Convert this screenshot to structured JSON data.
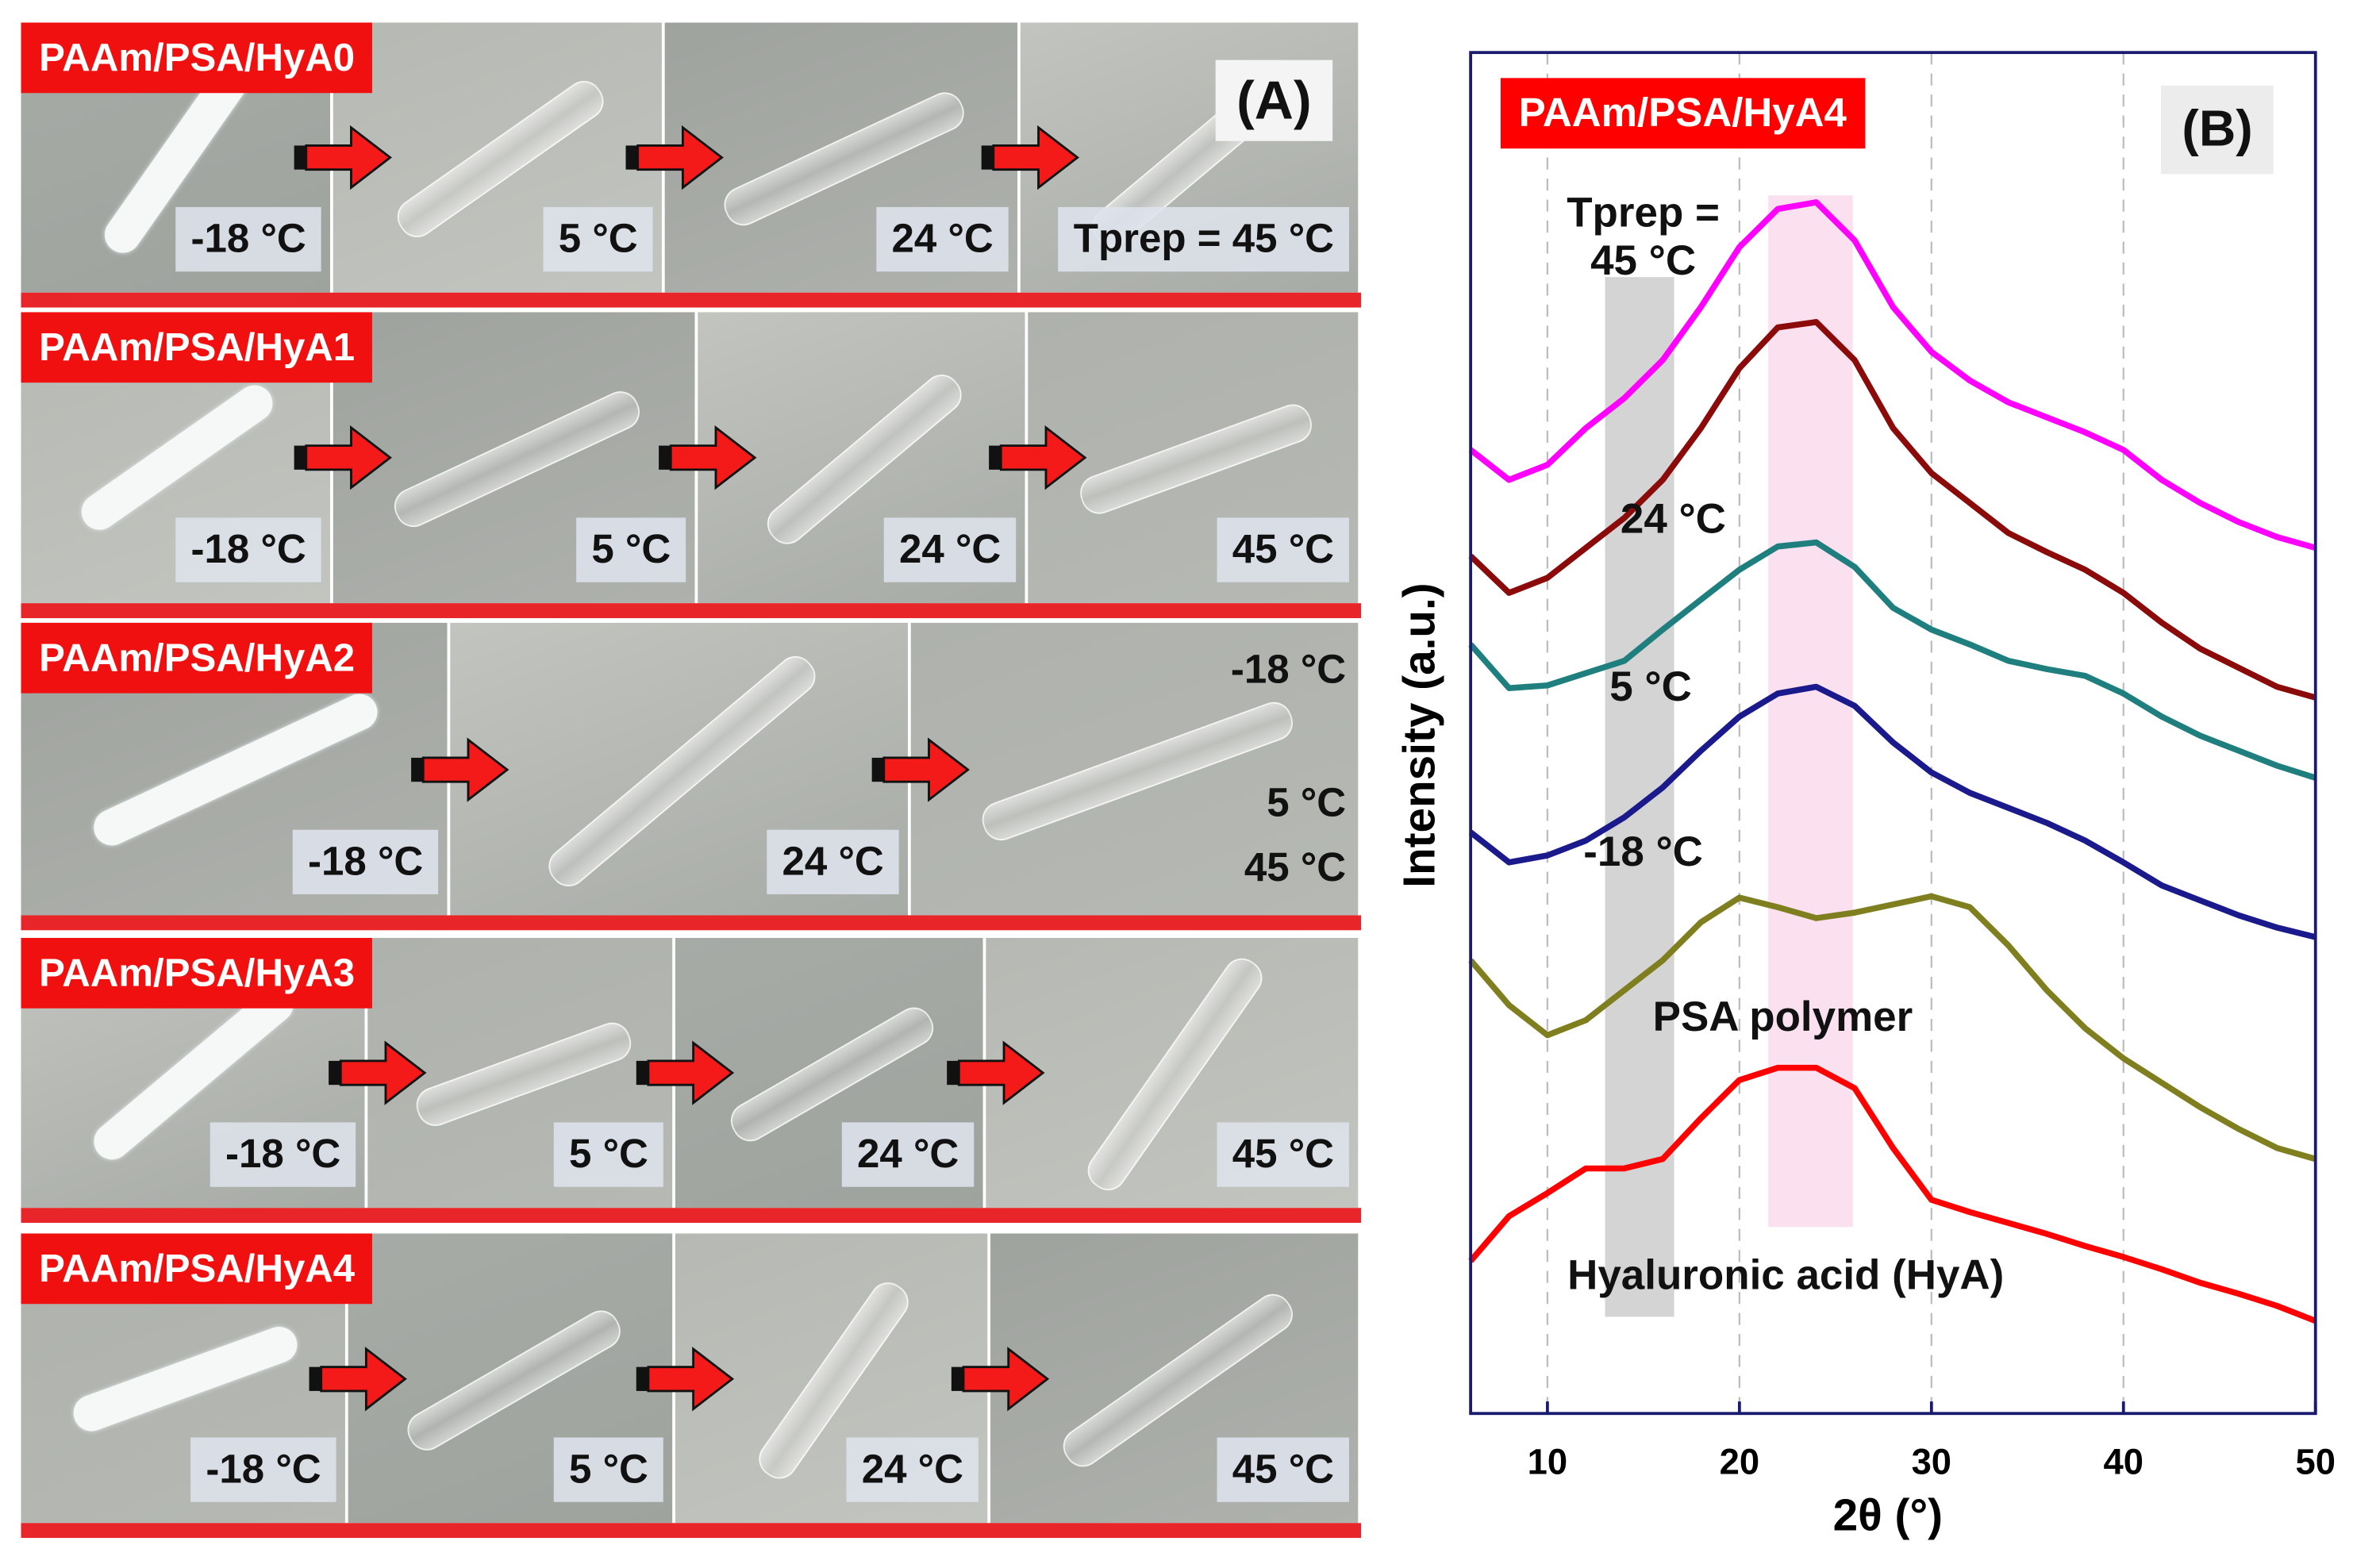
{
  "panel_a": {
    "label": "(A)",
    "rows": [
      {
        "title": "PAAm/PSA/HyA0",
        "photos": [
          {
            "labels": [
              "-18 °C"
            ]
          },
          {
            "labels": [
              "5 °C"
            ]
          },
          {
            "labels": [
              "24 °C"
            ]
          },
          {
            "labels": [
              "Tprep = 45 °C"
            ]
          }
        ]
      },
      {
        "title": "PAAm/PSA/HyA1",
        "photos": [
          {
            "labels": [
              "-18 °C"
            ]
          },
          {
            "labels": [
              "5 °C"
            ]
          },
          {
            "labels": [
              "24 °C"
            ]
          },
          {
            "labels": [
              "45 °C"
            ]
          }
        ]
      },
      {
        "title": "PAAm/PSA/HyA2",
        "photos": [
          {
            "labels": [
              "-18 °C"
            ]
          },
          {
            "labels": [
              "24 °C"
            ]
          },
          {
            "labels": [
              "-18 °C",
              "5 °C",
              "45 °C"
            ]
          }
        ]
      },
      {
        "title": "PAAm/PSA/HyA3",
        "photos": [
          {
            "labels": [
              "-18 °C"
            ]
          },
          {
            "labels": [
              "5 °C"
            ]
          },
          {
            "labels": [
              "24 °C"
            ]
          },
          {
            "labels": [
              "45 °C"
            ]
          }
        ]
      },
      {
        "title": "PAAm/PSA/HyA4",
        "photos": [
          {
            "labels": [
              "-18 °C"
            ]
          },
          {
            "labels": [
              "5 °C"
            ]
          },
          {
            "labels": [
              "24 °C"
            ]
          },
          {
            "labels": [
              "45 °C"
            ]
          }
        ]
      }
    ]
  },
  "chart_data": {
    "type": "line",
    "title": "PAAm/PSA/HyA4",
    "panel_label": "(B)",
    "x_label": "2θ (°)",
    "y_label": "Intensity (a.u.)",
    "xlim": [
      6,
      50
    ],
    "ylim": [
      0,
      100
    ],
    "xticks": [
      10,
      20,
      30,
      40,
      50
    ],
    "grid": true,
    "bands": [
      {
        "xrange": [
          13,
          16.6
        ],
        "yrange": [
          7.1,
          83.5
        ],
        "color": "#d4d4d4"
      },
      {
        "xrange": [
          21.5,
          25.9
        ],
        "yrange": [
          13.7,
          89.5
        ],
        "color": "#fbe0ef"
      }
    ],
    "x": [
      6,
      8,
      10,
      12,
      14,
      16,
      18,
      20,
      22,
      24,
      26,
      28,
      30,
      32,
      34,
      36,
      38,
      40,
      42,
      44,
      46,
      48,
      50
    ],
    "series": [
      {
        "name": "Tprep = 45 °C",
        "color": "#ff00ff",
        "values": [
          70.8,
          68.6,
          69.7,
          72.4,
          74.6,
          77.4,
          81.3,
          85.7,
          88.5,
          89,
          86.2,
          81.3,
          78,
          75.9,
          74.3,
          73.2,
          72.1,
          70.8,
          68.6,
          66.9,
          65.5,
          64.4,
          63.6
        ]
      },
      {
        "name": "24 °C",
        "color": "#8b0a0a",
        "values": [
          63,
          60.3,
          61.4,
          63.6,
          65.8,
          68.6,
          72.4,
          76.8,
          79.8,
          80.2,
          77.4,
          72.4,
          69.1,
          66.9,
          64.7,
          63.3,
          62,
          60.3,
          58.1,
          56.2,
          54.8,
          53.4,
          52.6
        ]
      },
      {
        "name": "5 °C",
        "color": "#1f7f7f",
        "values": [
          56.5,
          53.3,
          53.5,
          54.4,
          55.3,
          57.6,
          59.8,
          62,
          63.7,
          64,
          62.2,
          59.2,
          57.6,
          56.5,
          55.3,
          54.7,
          54.2,
          52.9,
          51.2,
          49.8,
          48.7,
          47.6,
          46.7
        ]
      },
      {
        "name": "-18 °C",
        "color": "#1a1a8c",
        "values": [
          42.7,
          40.5,
          41,
          42.1,
          43.8,
          46,
          48.7,
          51.2,
          52.9,
          53.4,
          52,
          49.3,
          47.1,
          45.6,
          44.5,
          43.4,
          42.1,
          40.5,
          38.8,
          37.7,
          36.6,
          35.7,
          35
        ]
      },
      {
        "name": "PSA polymer",
        "color": "#7f7f20",
        "values": [
          33.3,
          30,
          27.8,
          28.9,
          31.1,
          33.3,
          36.1,
          37.9,
          37.2,
          36.4,
          36.8,
          37.4,
          38,
          37.2,
          34.4,
          31.1,
          28.3,
          26.1,
          24.3,
          22.5,
          20.9,
          19.5,
          18.7
        ]
      },
      {
        "name": "Hyaluronic acid (HyA)",
        "color": "#ff0000",
        "values": [
          11.2,
          14.5,
          16.2,
          18,
          18,
          18.7,
          21.7,
          24.5,
          25.4,
          25.4,
          23.9,
          19.5,
          15.7,
          14.8,
          14,
          13.2,
          12.3,
          11.5,
          10.6,
          9.6,
          8.8,
          7.9,
          6.8
        ]
      }
    ]
  }
}
